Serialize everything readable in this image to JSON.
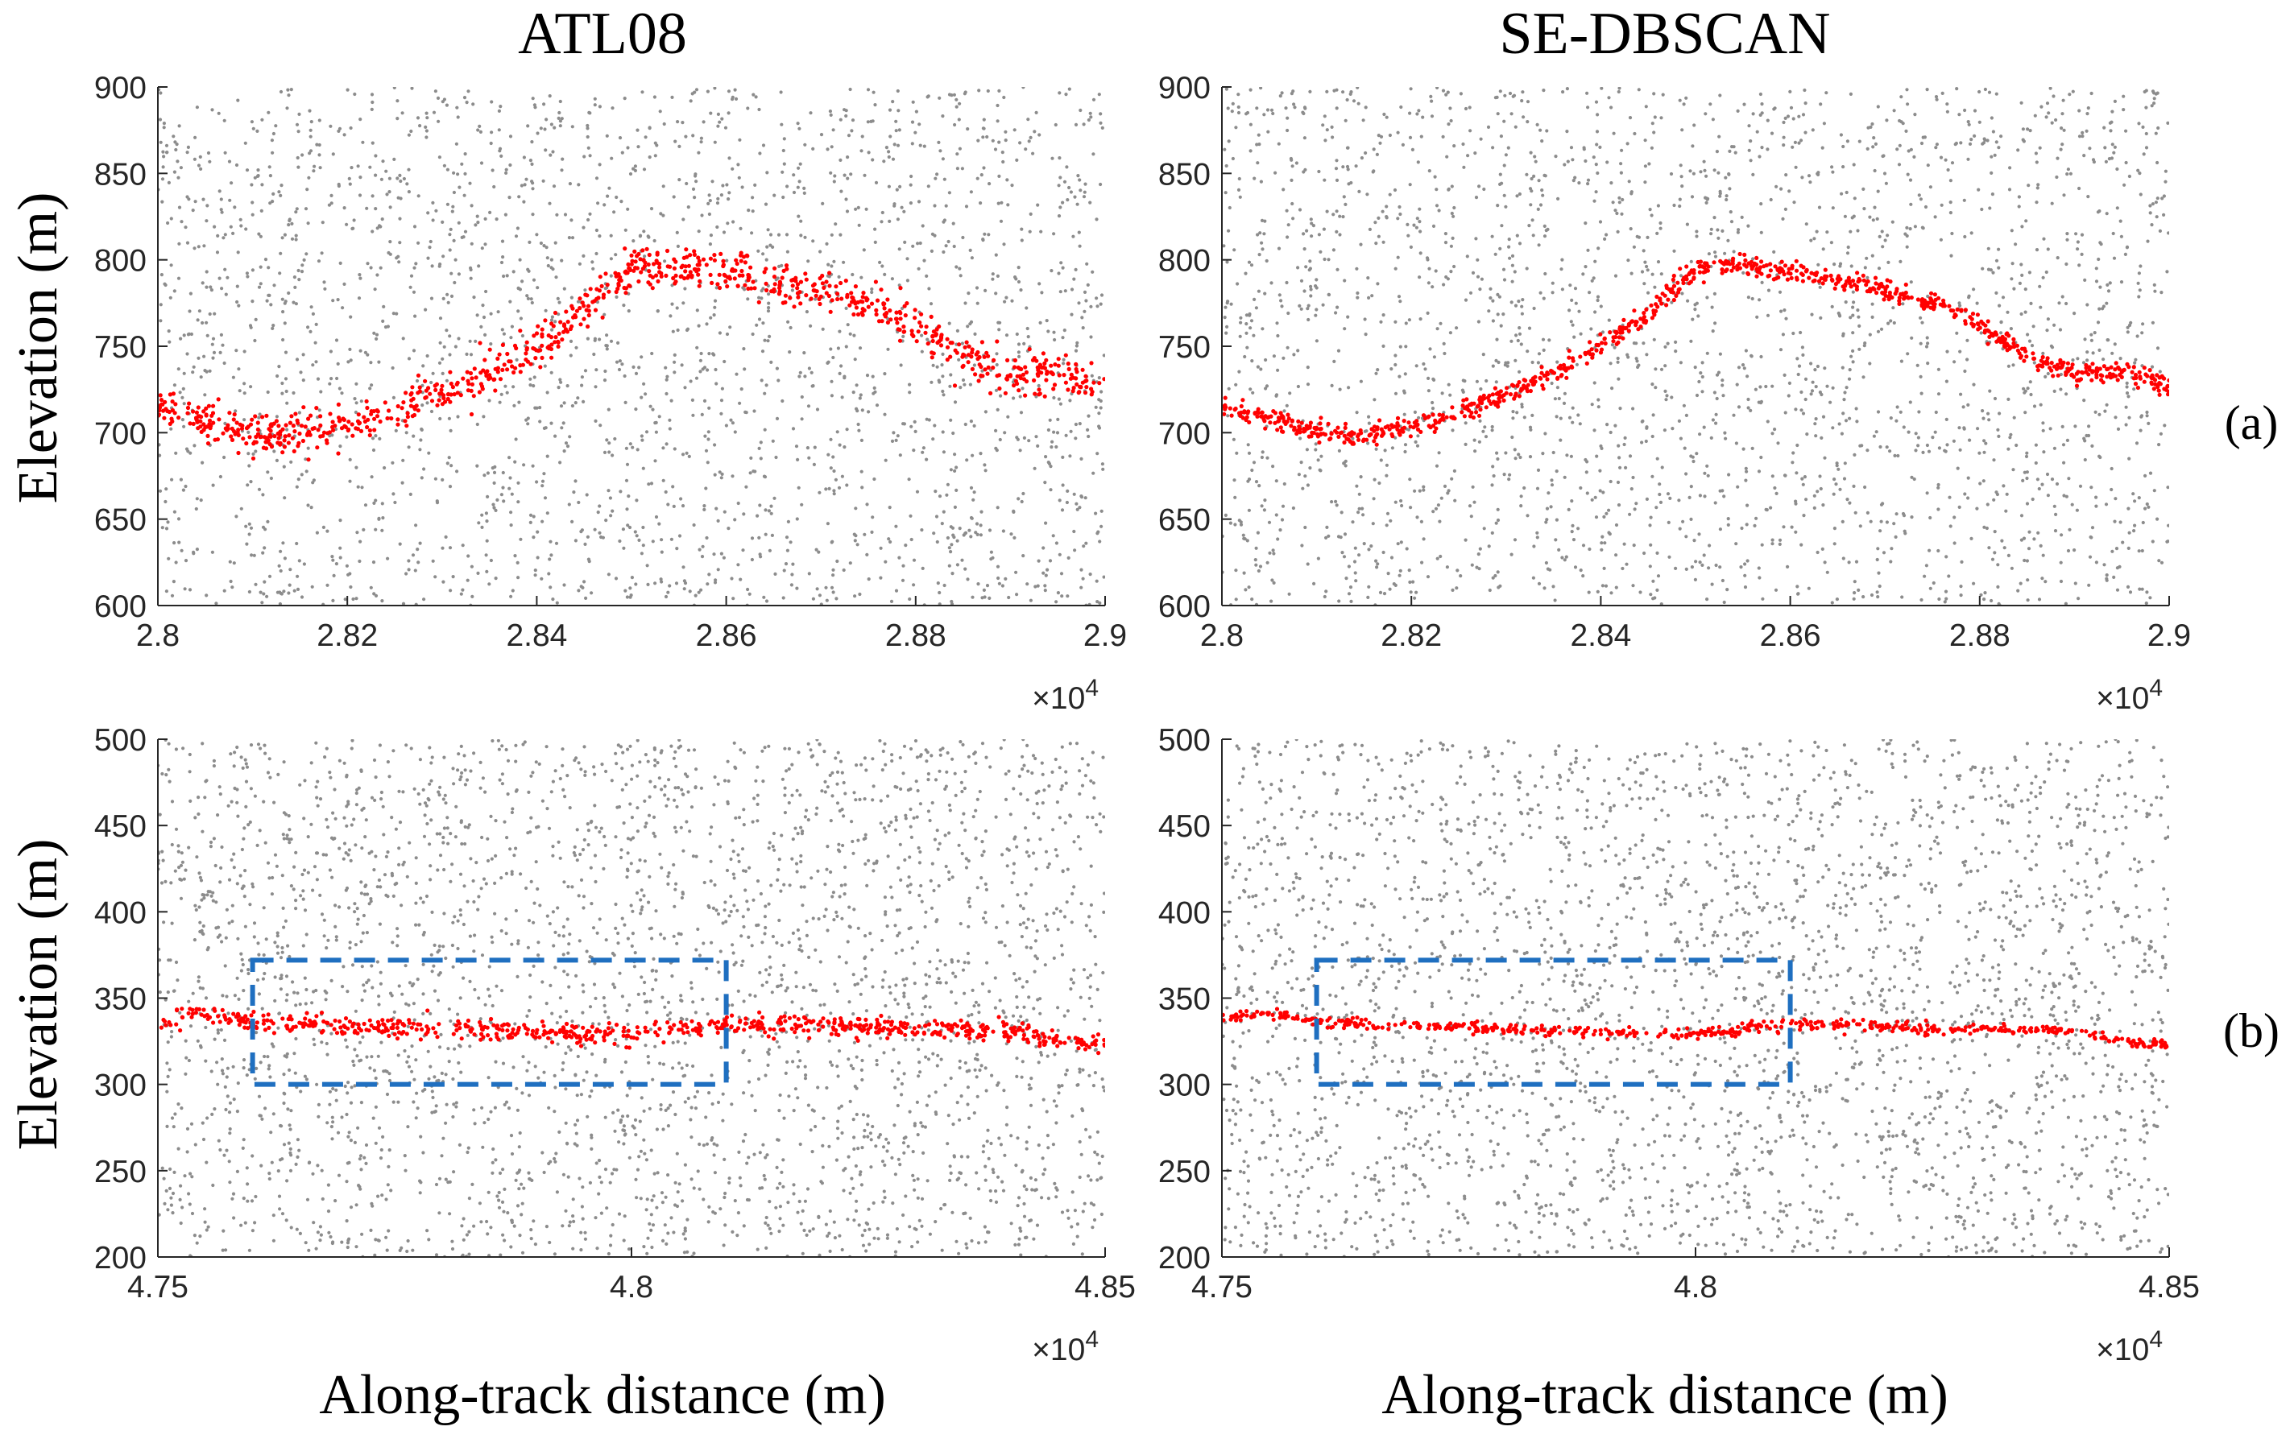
{
  "figure": {
    "row_labels": [
      "(a)",
      "(b)"
    ],
    "y_label": "Elevation (m)",
    "x_label": "Along-track distance (m)",
    "column_titles": [
      "ATL08",
      "SE-DBSCAN"
    ],
    "colors": {
      "noise": "#8c8c8c",
      "signal": "#ff0000",
      "box": "#1f6fc0",
      "axis": "#262626"
    }
  },
  "chart_data": [
    {
      "type": "scatter",
      "id": "a-atl08",
      "title": "ATL08",
      "row": "(a)",
      "xlabel": "",
      "ylabel": "Elevation (m)",
      "xlim": [
        28000,
        29000
      ],
      "ylim": [
        600,
        900
      ],
      "xticks": [
        28000,
        28200,
        28400,
        28600,
        28800,
        29000
      ],
      "xtick_labels": [
        "2.8",
        "2.82",
        "2.84",
        "2.86",
        "2.88",
        "2.9"
      ],
      "x_exponent": "×10^4",
      "yticks": [
        600,
        650,
        700,
        750,
        800,
        850,
        900
      ],
      "series": [
        {
          "name": "noise photons",
          "color": "#8c8c8c",
          "count": 2400
        },
        {
          "name": "signal photons",
          "color": "#ff0000",
          "count": 900,
          "spread": 6,
          "profile_x": [
            28000,
            28050,
            28100,
            28150,
            28200,
            28250,
            28300,
            28350,
            28400,
            28450,
            28500,
            28550,
            28600,
            28650,
            28700,
            28750,
            28800,
            28850,
            28900,
            28950,
            29000
          ],
          "profile_y": [
            715,
            708,
            700,
            699,
            703,
            712,
            722,
            734,
            750,
            770,
            795,
            796,
            793,
            788,
            783,
            775,
            762,
            745,
            733,
            735,
            728
          ]
        }
      ]
    },
    {
      "type": "scatter",
      "id": "a-sedbscan",
      "title": "SE-DBSCAN",
      "row": "(a)",
      "xlabel": "",
      "ylabel": "",
      "xlim": [
        28000,
        29000
      ],
      "ylim": [
        600,
        900
      ],
      "xticks": [
        28000,
        28200,
        28400,
        28600,
        28800,
        29000
      ],
      "xtick_labels": [
        "2.8",
        "2.82",
        "2.84",
        "2.86",
        "2.88",
        "2.9"
      ],
      "x_exponent": "×10^4",
      "yticks": [
        600,
        650,
        700,
        750,
        800,
        850,
        900
      ],
      "series": [
        {
          "name": "noise photons",
          "color": "#8c8c8c",
          "count": 2400
        },
        {
          "name": "signal photons",
          "color": "#ff0000",
          "count": 900,
          "spread": 3,
          "profile_x": [
            28000,
            28050,
            28100,
            28150,
            28200,
            28250,
            28300,
            28350,
            28400,
            28450,
            28500,
            28550,
            28600,
            28650,
            28700,
            28750,
            28800,
            28850,
            28900,
            28950,
            29000
          ],
          "profile_y": [
            715,
            708,
            700,
            699,
            703,
            712,
            722,
            734,
            750,
            770,
            795,
            796,
            793,
            788,
            783,
            775,
            762,
            745,
            733,
            735,
            728
          ]
        }
      ]
    },
    {
      "type": "scatter",
      "id": "b-atl08",
      "title": "",
      "row": "(b)",
      "xlabel": "Along-track distance (m)",
      "ylabel": "Elevation (m)",
      "xlim": [
        47500,
        48500
      ],
      "ylim": [
        200,
        500
      ],
      "xticks": [
        47500,
        48000,
        48500
      ],
      "xtick_labels": [
        "4.75",
        "4.8",
        "4.85"
      ],
      "x_exponent": "×10^4",
      "yticks": [
        200,
        250,
        300,
        350,
        400,
        450,
        500
      ],
      "highlight_box": {
        "x": [
          47600,
          48100
        ],
        "y": [
          300,
          372
        ],
        "color": "#1f6fc0",
        "style": "dashed"
      },
      "series": [
        {
          "name": "noise photons",
          "color": "#8c8c8c",
          "count": 3000
        },
        {
          "name": "signal photons",
          "color": "#ff0000",
          "count": 700,
          "spread": 3,
          "profile_x": [
            47500,
            47550,
            47600,
            47650,
            47700,
            47800,
            47900,
            48000,
            48100,
            48200,
            48300,
            48400,
            48450,
            48500
          ],
          "profile_y": [
            337,
            342,
            336,
            335,
            334,
            332,
            330,
            329,
            335,
            334,
            332,
            331,
            325,
            324
          ]
        }
      ]
    },
    {
      "type": "scatter",
      "id": "b-sedbscan",
      "title": "",
      "row": "(b)",
      "xlabel": "Along-track distance (m)",
      "ylabel": "",
      "xlim": [
        47500,
        48500
      ],
      "ylim": [
        200,
        500
      ],
      "xticks": [
        47500,
        48000,
        48500
      ],
      "xtick_labels": [
        "4.75",
        "4.8",
        "4.85"
      ],
      "x_exponent": "×10^4",
      "yticks": [
        200,
        250,
        300,
        350,
        400,
        450,
        500
      ],
      "highlight_box": {
        "x": [
          47600,
          48100
        ],
        "y": [
          300,
          372
        ],
        "color": "#1f6fc0",
        "style": "dashed"
      },
      "series": [
        {
          "name": "noise photons",
          "color": "#8c8c8c",
          "count": 3000
        },
        {
          "name": "signal photons",
          "color": "#ff0000",
          "count": 560,
          "spread": 1.5,
          "profile_x": [
            47500,
            47550,
            47600,
            47650,
            47700,
            47800,
            47900,
            48000,
            48100,
            48200,
            48300,
            48400,
            48450,
            48500
          ],
          "profile_y": [
            337,
            342,
            336,
            335,
            334,
            332,
            330,
            329,
            335,
            334,
            332,
            331,
            325,
            324
          ]
        }
      ]
    }
  ]
}
